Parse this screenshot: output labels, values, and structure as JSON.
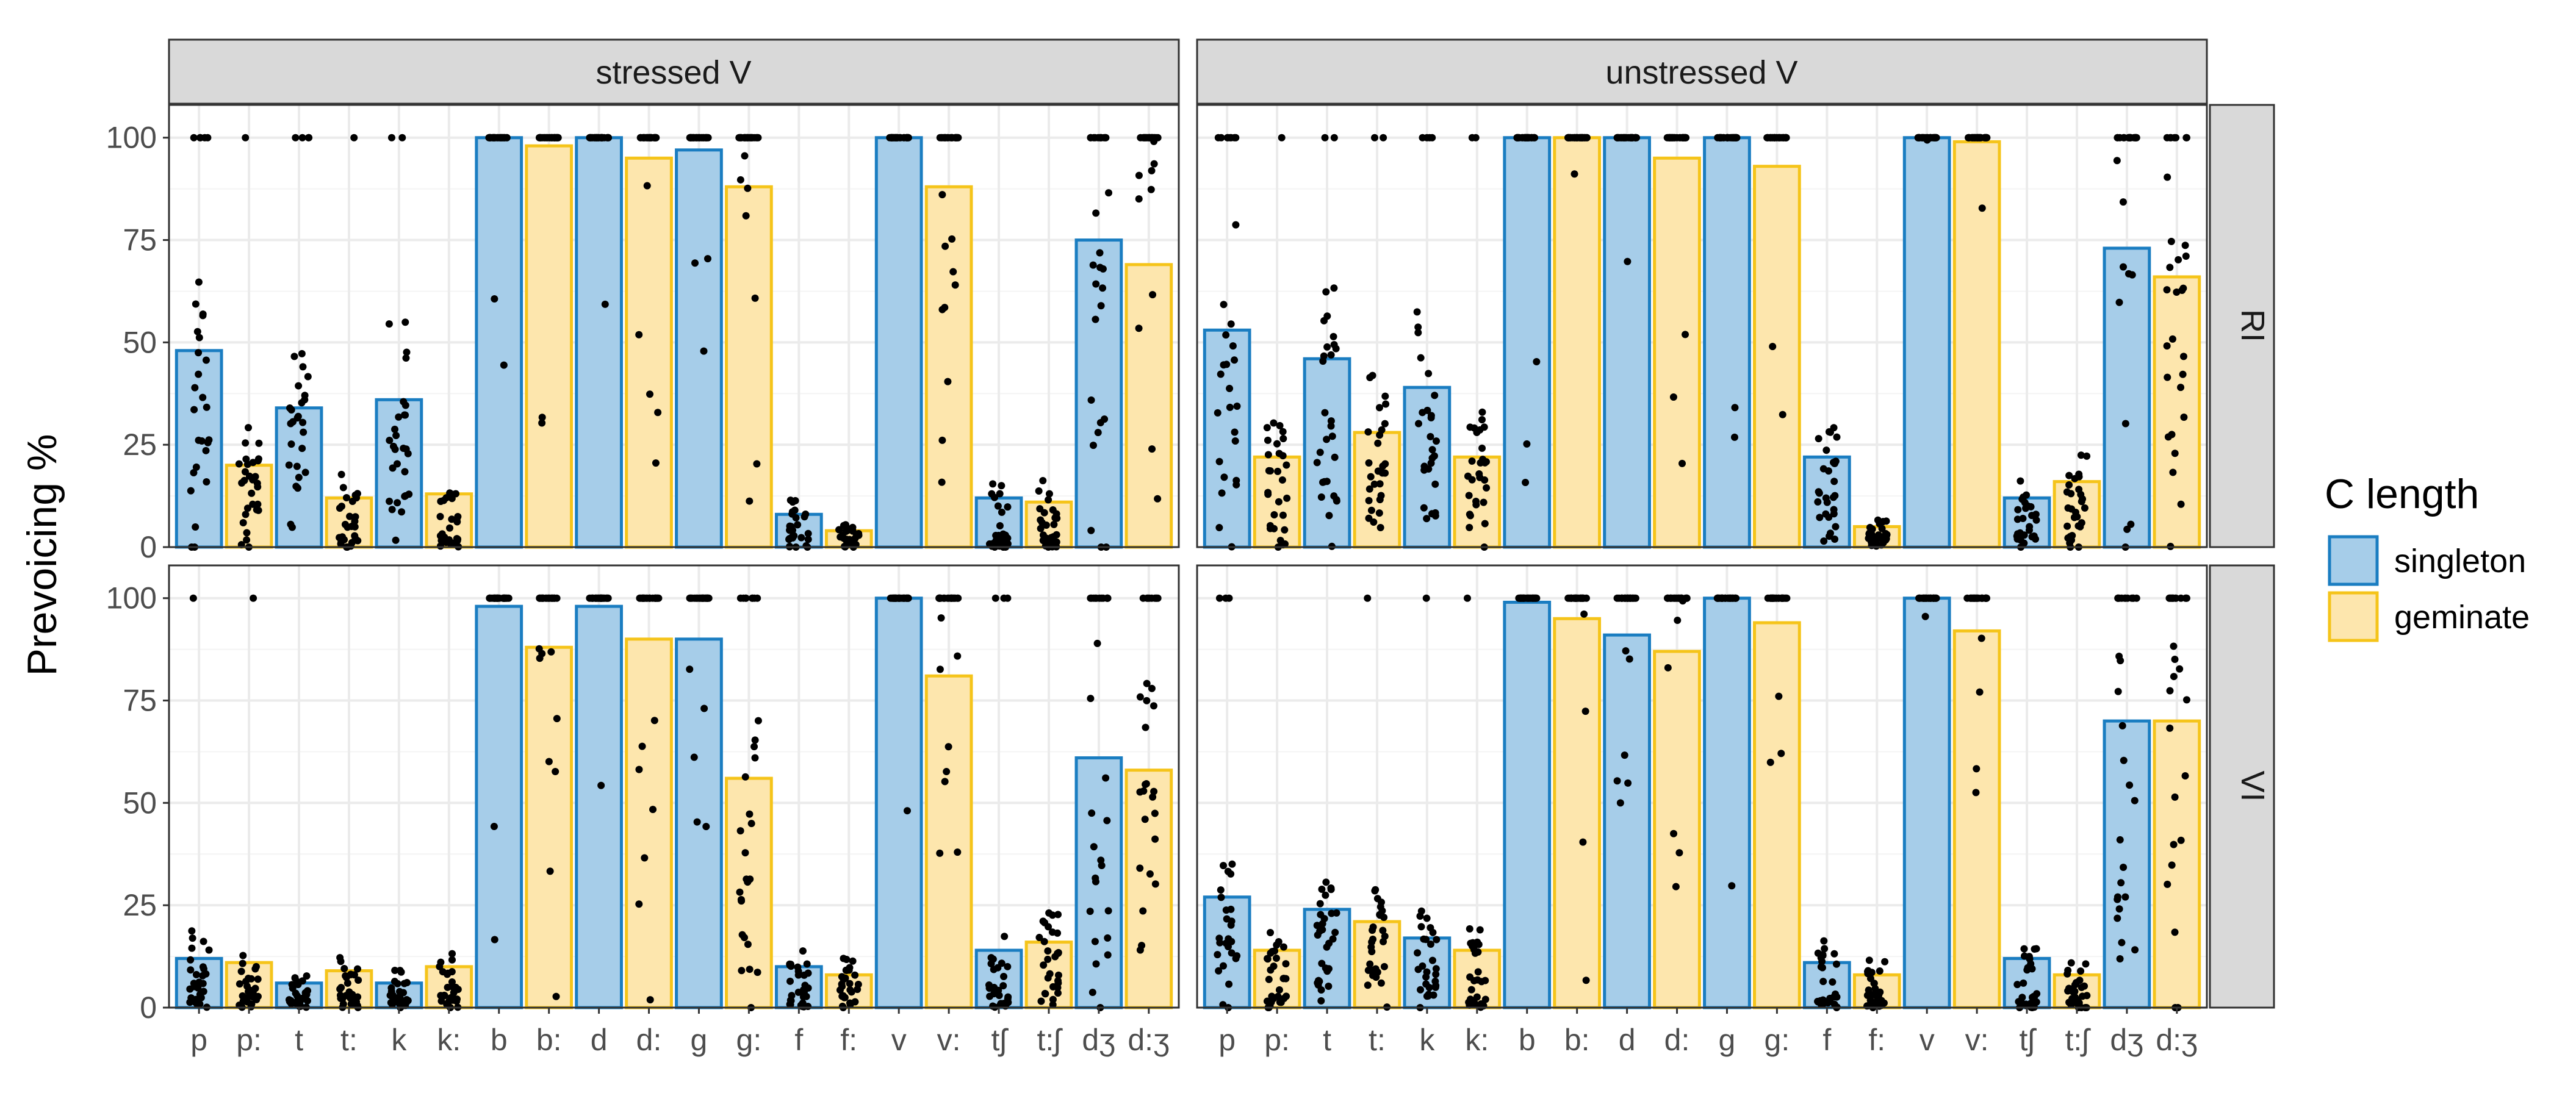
{
  "chart_data": {
    "type": "bar",
    "ylabel": "Prevoicing %",
    "xlabel": "",
    "ylim": [
      0,
      108
    ],
    "yticks": [
      0,
      25,
      50,
      75,
      100
    ],
    "yticks_labels": [
      "0",
      "25",
      "50",
      "75",
      "100"
    ],
    "grid": true,
    "categories": [
      "p",
      "p:",
      "t",
      "t:",
      "k",
      "k:",
      "b",
      "b:",
      "d",
      "d:",
      "g",
      "g:",
      "f",
      "f:",
      "v",
      "v:",
      "tʃ",
      "t:ʃ",
      "dʒ",
      "d:ʒ"
    ],
    "length_by_category": [
      "singleton",
      "geminate",
      "singleton",
      "geminate",
      "singleton",
      "geminate",
      "singleton",
      "geminate",
      "singleton",
      "geminate",
      "singleton",
      "geminate",
      "singleton",
      "geminate",
      "singleton",
      "geminate",
      "singleton",
      "geminate",
      "singleton",
      "geminate"
    ],
    "columns": [
      "stressed V",
      "unstressed V"
    ],
    "rows": [
      "RI",
      "VI"
    ],
    "legend": {
      "title": "C length",
      "position": "right",
      "entries": [
        {
          "label": "singleton",
          "fill": "#a6cde9",
          "stroke": "#1a7dc1"
        },
        {
          "label": "geminate",
          "fill": "#fde6ad",
          "stroke": "#f5c41a"
        }
      ]
    },
    "panels": [
      {
        "column": "stressed V",
        "row": "RI",
        "values": [
          48,
          20,
          34,
          12,
          36,
          13,
          100,
          98,
          100,
          95,
          97,
          88,
          8,
          4,
          100,
          88,
          12,
          11,
          75,
          69
        ]
      },
      {
        "column": "unstressed V",
        "row": "RI",
        "values": [
          53,
          22,
          46,
          28,
          39,
          22,
          100,
          100,
          100,
          95,
          100,
          93,
          22,
          5,
          100,
          99,
          12,
          16,
          73,
          66
        ]
      },
      {
        "column": "stressed V",
        "row": "VI",
        "values": [
          12,
          11,
          6,
          9,
          6,
          10,
          98,
          88,
          98,
          90,
          90,
          56,
          10,
          8,
          100,
          81,
          14,
          16,
          61,
          58
        ]
      },
      {
        "column": "unstressed V",
        "row": "VI",
        "values": [
          27,
          14,
          24,
          21,
          17,
          14,
          99,
          95,
          91,
          87,
          100,
          94,
          11,
          8,
          100,
          92,
          12,
          8,
          70,
          70
        ]
      }
    ],
    "points": "individual token jitter dots (black) spread over 0–100"
  }
}
